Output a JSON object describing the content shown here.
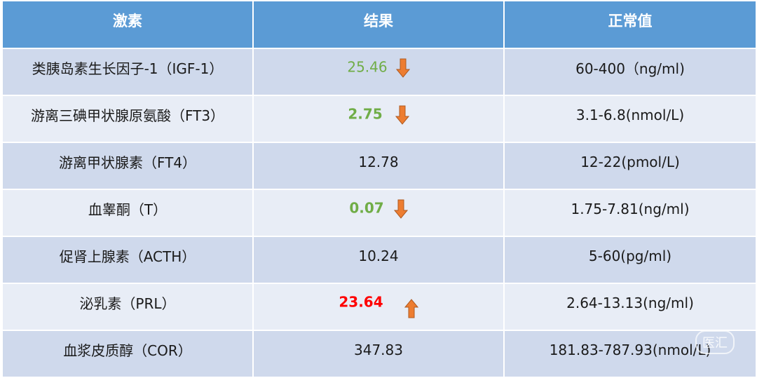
{
  "table": {
    "header": [
      "激素",
      "结果",
      "正常值"
    ],
    "rows": [
      [
        "类胰岛素生长因子-1（IGF-1）",
        "25.46",
        "60-400（ng/ml)"
      ],
      [
        "游离三碘甲状腺原氨酸（FT3）",
        "2.75",
        "3.1-6.8(nmol/L)"
      ],
      [
        "游离甲状腺素（FT4）",
        "12.78",
        "12-22(pmol/L)"
      ],
      [
        "血睾酮（T）",
        "0.07",
        "1.75-7.81(ng/ml)"
      ],
      [
        "促肾上腺素（ACTH）",
        "10.24",
        "5-60(pg/ml)"
      ],
      [
        "泌乳素（PRL）",
        "23.64",
        "2.64-13.13(ng/ml)"
      ],
      [
        "血浆皮质醇（COR）",
        "347.83",
        "181.83-787.93(nmol/L)"
      ]
    ]
  },
  "watermark": "医汇"
}
